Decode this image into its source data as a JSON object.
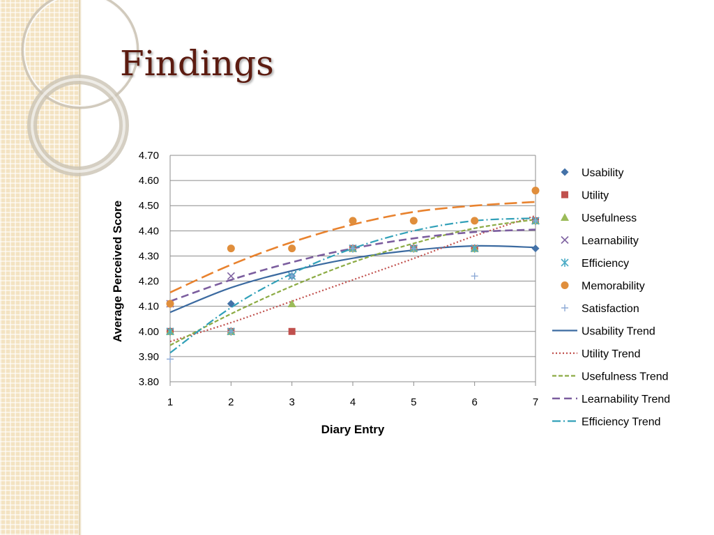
{
  "slide": {
    "title": "Findings"
  },
  "chart_data": {
    "type": "scatter",
    "xlabel": "Diary Entry",
    "ylabel": "Average Perceived Score",
    "x": [
      1,
      2,
      3,
      4,
      5,
      6,
      7
    ],
    "xlim": [
      1,
      7
    ],
    "ylim": [
      3.8,
      4.7
    ],
    "yticks": [
      "3.80",
      "3.90",
      "4.00",
      "4.10",
      "4.20",
      "4.30",
      "4.40",
      "4.50",
      "4.60",
      "4.70"
    ],
    "xticks": [
      "1",
      "2",
      "3",
      "4",
      "5",
      "6",
      "7"
    ],
    "grid": "horizontal",
    "legend_position": "right",
    "series": [
      {
        "name": "Usability",
        "marker": "diamond",
        "color": "#4472a8",
        "values": [
          4.0,
          4.11,
          4.22,
          4.33,
          4.33,
          4.33,
          4.33
        ]
      },
      {
        "name": "Utility",
        "marker": "square",
        "color": "#c0504d",
        "values": [
          4.0,
          4.0,
          4.0,
          4.33,
          4.33,
          4.33,
          4.44
        ]
      },
      {
        "name": "Usefulness",
        "marker": "triangle",
        "color": "#9bbb59",
        "values": [
          4.0,
          4.0,
          4.11,
          4.33,
          4.33,
          4.33,
          4.44
        ]
      },
      {
        "name": "Learnability",
        "marker": "x",
        "color": "#8064a2",
        "values": [
          4.11,
          4.22,
          4.22,
          4.33,
          4.33,
          4.33,
          4.44
        ]
      },
      {
        "name": "Efficiency",
        "marker": "star",
        "color": "#4bacc6",
        "values": [
          4.0,
          4.0,
          4.22,
          4.33,
          4.33,
          4.33,
          4.44
        ]
      },
      {
        "name": "Memorability",
        "marker": "circle",
        "color": "#e08e3c",
        "values": [
          4.11,
          4.33,
          4.33,
          4.44,
          4.44,
          4.44,
          4.56
        ]
      },
      {
        "name": "Satisfaction",
        "marker": "plus",
        "color": "#8eaad6",
        "values": [
          3.89,
          4.0,
          4.22,
          4.33,
          4.33,
          4.22,
          4.44
        ]
      }
    ],
    "trends": [
      {
        "name": "Usability Trend",
        "color": "#3b6aa0",
        "dash": "",
        "width": 2.2,
        "values": [
          4.076,
          4.174,
          4.241,
          4.291,
          4.323,
          4.34,
          4.334
        ]
      },
      {
        "name": "Utility Trend",
        "color": "#c0504d",
        "dash": "2,3",
        "width": 2.2,
        "values": [
          3.96,
          4.035,
          4.12,
          4.205,
          4.29,
          4.38,
          4.46
        ]
      },
      {
        "name": "Usefulness Trend",
        "color": "#8cab44",
        "dash": "6,3",
        "width": 2.2,
        "values": [
          3.945,
          4.07,
          4.18,
          4.275,
          4.35,
          4.41,
          4.445
        ]
      },
      {
        "name": "Learnability Trend",
        "color": "#7b5d9e",
        "dash": "11,6",
        "width": 2.6,
        "values": [
          4.12,
          4.205,
          4.275,
          4.33,
          4.37,
          4.395,
          4.405
        ]
      },
      {
        "name": "Efficiency Trend",
        "color": "#31a0b8",
        "dash": "12,4,2,4",
        "width": 2.2,
        "values": [
          3.915,
          4.095,
          4.23,
          4.33,
          4.4,
          4.44,
          4.45
        ]
      },
      {
        "name": "Memorability Trend",
        "color": "#e8822e",
        "dash": "18,7",
        "width": 2.6,
        "values": [
          4.155,
          4.265,
          4.355,
          4.425,
          4.475,
          4.5,
          4.515
        ]
      }
    ],
    "legend_entries": [
      {
        "label": "Usability",
        "kind": "marker",
        "marker": "diamond",
        "color": "#4472a8"
      },
      {
        "label": "Utility",
        "kind": "marker",
        "marker": "square",
        "color": "#c0504d"
      },
      {
        "label": "Usefulness",
        "kind": "marker",
        "marker": "triangle",
        "color": "#9bbb59"
      },
      {
        "label": "Learnability",
        "kind": "marker",
        "marker": "x",
        "color": "#8064a2"
      },
      {
        "label": "Efficiency",
        "kind": "marker",
        "marker": "star",
        "color": "#4bacc6"
      },
      {
        "label": "Memorability",
        "kind": "marker",
        "marker": "circle",
        "color": "#e08e3c"
      },
      {
        "label": "Satisfaction",
        "kind": "marker",
        "marker": "plus",
        "color": "#8eaad6"
      },
      {
        "label": "Usability Trend",
        "kind": "line",
        "color": "#3b6aa0",
        "dash": "",
        "width": 2.2
      },
      {
        "label": "Utility Trend",
        "kind": "line",
        "color": "#c0504d",
        "dash": "2,3",
        "width": 2.2
      },
      {
        "label": "Usefulness Trend",
        "kind": "line",
        "color": "#8cab44",
        "dash": "6,3",
        "width": 2.2
      },
      {
        "label": "Learnability Trend",
        "kind": "line",
        "color": "#7b5d9e",
        "dash": "11,6",
        "width": 2.6
      },
      {
        "label": "Efficiency Trend",
        "kind": "line",
        "color": "#31a0b8",
        "dash": "12,4,2,4",
        "width": 2.2
      }
    ]
  }
}
